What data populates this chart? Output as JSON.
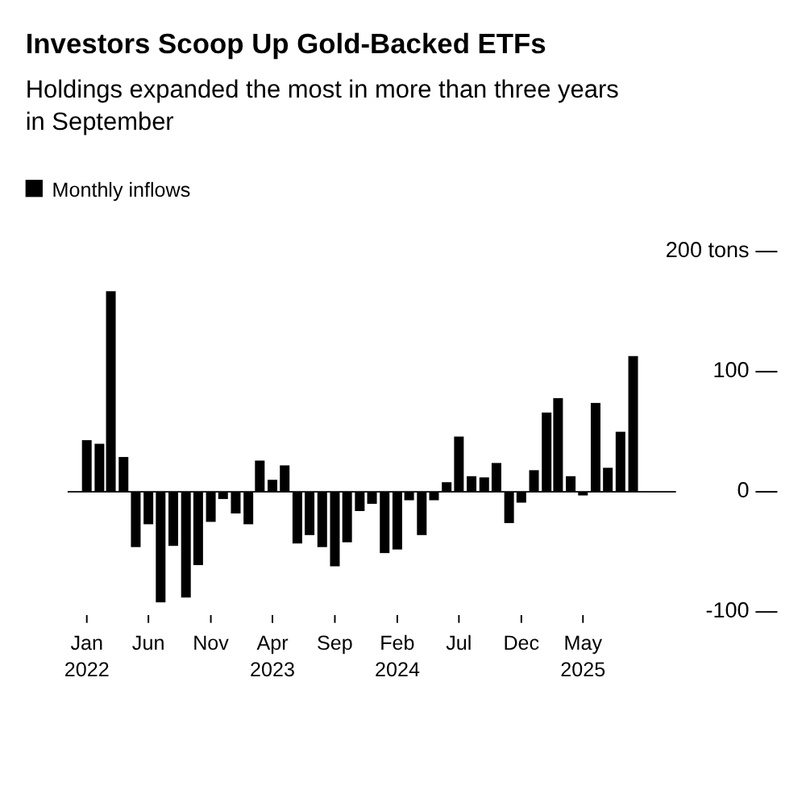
{
  "chart_data": {
    "type": "bar",
    "title": "Investors Scoop Up Gold-Backed ETFs",
    "subtitle": "Holdings expanded the most in more than three years in September",
    "x": [
      "2022-01",
      "2022-02",
      "2022-03",
      "2022-04",
      "2022-05",
      "2022-06",
      "2022-07",
      "2022-08",
      "2022-09",
      "2022-10",
      "2022-11",
      "2022-12",
      "2023-01",
      "2023-02",
      "2023-03",
      "2023-04",
      "2023-05",
      "2023-06",
      "2023-07",
      "2023-08",
      "2023-09",
      "2023-10",
      "2023-11",
      "2023-12",
      "2024-01",
      "2024-02",
      "2024-03",
      "2024-04",
      "2024-05",
      "2024-06",
      "2024-07",
      "2024-08",
      "2024-09",
      "2024-10",
      "2024-11",
      "2024-12",
      "2025-01",
      "2025-02",
      "2025-03",
      "2025-04",
      "2025-05",
      "2025-06",
      "2025-07",
      "2025-08",
      "2025-09"
    ],
    "series": [
      {
        "name": "Monthly inflows",
        "color": "#000000",
        "values": [
          43,
          40,
          167,
          29,
          -46,
          -27,
          -92,
          -45,
          -88,
          -61,
          -25,
          -6,
          -18,
          -27,
          26,
          10,
          22,
          -43,
          -36,
          -46,
          -62,
          -42,
          -16,
          -10,
          -51,
          -48,
          -7,
          -36,
          -7,
          8,
          46,
          13,
          12,
          24,
          -26,
          -9,
          18,
          66,
          78,
          13,
          -3,
          74,
          20,
          50,
          113
        ]
      }
    ],
    "xlim": [
      "2021-11-15",
      "2025-12-15"
    ],
    "xticks": [
      {
        "value": "2022-01",
        "label": "Jan\n2022"
      },
      {
        "value": "2022-06",
        "label": "Jun"
      },
      {
        "value": "2022-11",
        "label": "Nov"
      },
      {
        "value": "2023-04",
        "label": "Apr\n2023"
      },
      {
        "value": "2023-09",
        "label": "Sep"
      },
      {
        "value": "2024-02",
        "label": "Feb\n2024"
      },
      {
        "value": "2024-07",
        "label": "Jul"
      },
      {
        "value": "2024-12",
        "label": "Dec"
      },
      {
        "value": "2025-05",
        "label": "May\n2025"
      }
    ],
    "ylim": [
      -100,
      200
    ],
    "yticks": [
      -100,
      0,
      100,
      {
        "value": 200,
        "label": "200 tons"
      }
    ],
    "legend": "top left",
    "grid": "y"
  }
}
